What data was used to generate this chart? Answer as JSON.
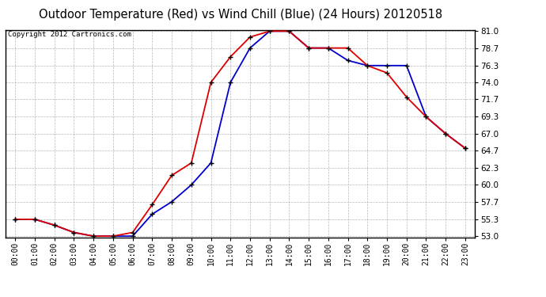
{
  "title": "Outdoor Temperature (Red) vs Wind Chill (Blue) (24 Hours) 20120518",
  "copyright": "Copyright 2012 Cartronics.com",
  "x_labels": [
    "00:00",
    "01:00",
    "02:00",
    "03:00",
    "04:00",
    "05:00",
    "06:00",
    "07:00",
    "08:00",
    "09:00",
    "10:00",
    "11:00",
    "12:00",
    "13:00",
    "14:00",
    "15:00",
    "16:00",
    "17:00",
    "18:00",
    "19:00",
    "20:00",
    "21:00",
    "22:00",
    "23:00"
  ],
  "temp_red": [
    55.3,
    55.3,
    54.5,
    53.5,
    53.0,
    53.0,
    53.5,
    57.3,
    61.3,
    63.0,
    74.0,
    77.5,
    80.2,
    81.0,
    81.0,
    78.7,
    78.7,
    78.7,
    76.3,
    75.3,
    72.0,
    69.3,
    67.0,
    65.0
  ],
  "wind_chill_blue": [
    55.3,
    55.3,
    54.5,
    53.5,
    53.0,
    53.0,
    53.0,
    56.0,
    57.7,
    60.0,
    63.0,
    74.0,
    78.7,
    81.0,
    81.0,
    78.7,
    78.7,
    77.0,
    76.3,
    76.3,
    76.3,
    69.3,
    67.0,
    65.0
  ],
  "ylim_min": 53.0,
  "ylim_max": 81.0,
  "yticks": [
    53.0,
    55.3,
    57.7,
    60.0,
    62.3,
    64.7,
    67.0,
    69.3,
    71.7,
    74.0,
    76.3,
    78.7,
    81.0
  ],
  "bg_color": "#ffffff",
  "plot_bg": "#ffffff",
  "grid_color": "#999999",
  "red_color": "#dd0000",
  "blue_color": "#0000cc",
  "title_fontsize": 10.5,
  "copyright_fontsize": 6.5,
  "tick_fontsize": 7.5,
  "xtick_fontsize": 7
}
